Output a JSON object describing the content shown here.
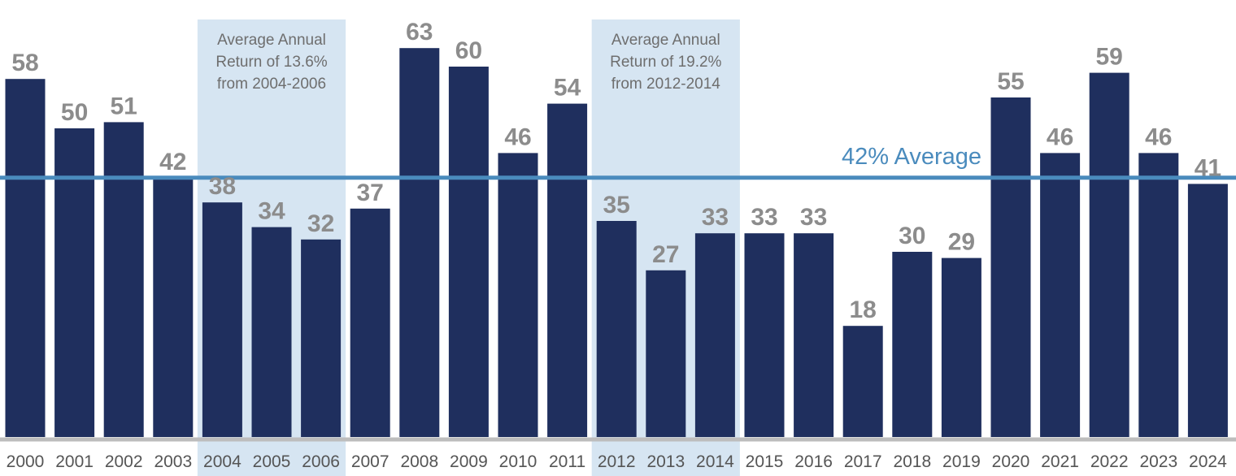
{
  "chart_data": {
    "type": "bar",
    "categories": [
      "2000",
      "2001",
      "2002",
      "2003",
      "2004",
      "2005",
      "2006",
      "2007",
      "2008",
      "2009",
      "2010",
      "2011",
      "2012",
      "2013",
      "2014",
      "2015",
      "2016",
      "2017",
      "2018",
      "2019",
      "2020",
      "2021",
      "2022",
      "2023",
      "2024"
    ],
    "values": [
      58,
      50,
      51,
      42,
      38,
      34,
      32,
      37,
      63,
      60,
      46,
      54,
      35,
      27,
      33,
      33,
      33,
      18,
      30,
      29,
      55,
      46,
      59,
      46,
      41
    ],
    "ylim": [
      0,
      70
    ],
    "grid": false,
    "legend": "none",
    "average": {
      "value": 42,
      "label": "42% Average"
    },
    "highlights": [
      {
        "from": "2004",
        "to": "2006",
        "lines": [
          "Average Annual",
          "Return of 13.6%",
          "from 2004-2006"
        ]
      },
      {
        "from": "2012",
        "to": "2014",
        "lines": [
          "Average Annual",
          "Return of 19.2%",
          "from 2012-2014"
        ]
      }
    ]
  },
  "colors": {
    "bar": "#1f2f5e",
    "value_label": "#8c8c8c",
    "band": "#d6e5f2",
    "average_line": "#4a8bbd",
    "baseline": "#bdbdbd"
  }
}
